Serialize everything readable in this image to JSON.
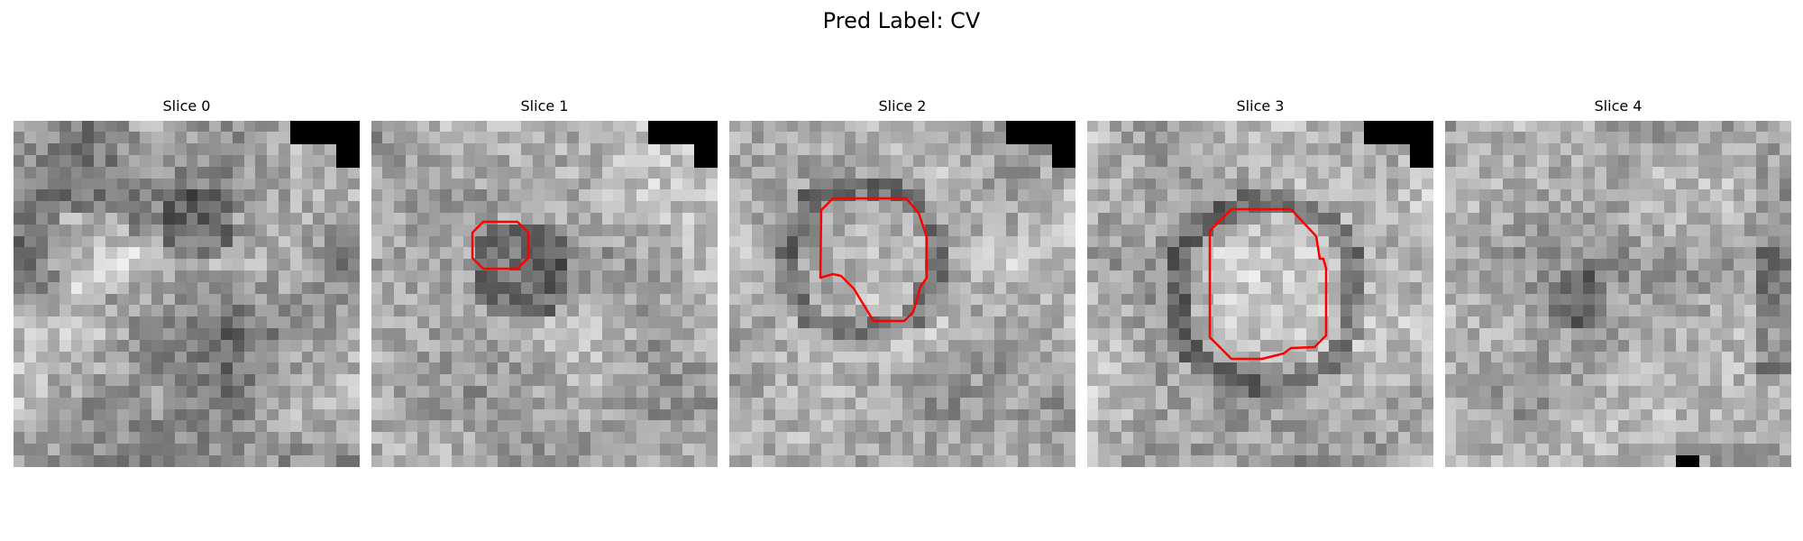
{
  "figure": {
    "title": "Pred Label: CV"
  },
  "panels": [
    {
      "title": "Slice 0",
      "has_contour": false
    },
    {
      "title": "Slice 1",
      "has_contour": true
    },
    {
      "title": "Slice 2",
      "has_contour": true
    },
    {
      "title": "Slice 3",
      "has_contour": true
    },
    {
      "title": "Slice 4",
      "has_contour": false
    }
  ],
  "colors": {
    "contour": "#ff0000",
    "background": "#ffffff"
  },
  "colormap": "gray"
}
